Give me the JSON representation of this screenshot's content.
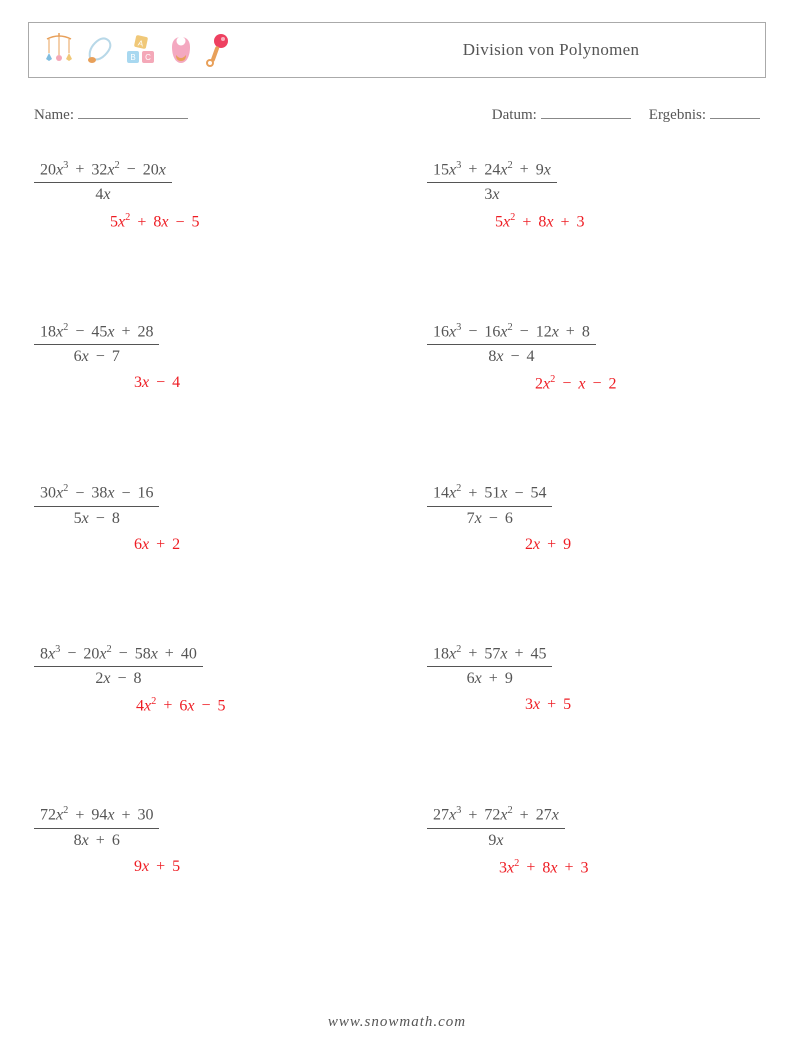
{
  "header": {
    "title": "Division von Polynomen",
    "icon_colors": {
      "mobile_frame": "#e8a05a",
      "mobile_accent": "#7fbde0",
      "pin_outline": "#b8d8e8",
      "pin_accent": "#e8a05a",
      "block_a": "#f4a8b8",
      "block_b": "#a8d8f0",
      "block_c": "#f0c878",
      "bib_body": "#f4a8c0",
      "bib_pocket": "#e8a05a",
      "rattle_handle": "#e8a05a",
      "rattle_ball": "#ee4060"
    }
  },
  "meta": {
    "name_label": "Name:",
    "date_label": "Datum:",
    "score_label": "Ergebnis:"
  },
  "styling": {
    "text_color": "#555555",
    "answer_color": "#ee1c23",
    "border_color": "#aaaaaa",
    "background_color": "#ffffff",
    "body_fontsize": 16,
    "title_fontsize": 17,
    "meta_fontsize": 15
  },
  "problems": {
    "columns": 2,
    "rows": 5,
    "items": [
      {
        "numerator": "20x³ + 32x² − 20x",
        "denominator": "4x",
        "answer": "5x² + 8x − 5",
        "answer_indent": 76
      },
      {
        "numerator": "15x³ + 24x² + 9x",
        "denominator": "3x",
        "answer": "5x² + 8x + 3",
        "answer_indent": 68
      },
      {
        "numerator": "18x² − 45x + 28",
        "denominator": "6x − 7",
        "answer": "3x − 4",
        "answer_indent": 100
      },
      {
        "numerator": "16x³ − 16x² − 12x + 8",
        "denominator": "8x − 4",
        "answer": "2x² − x − 2",
        "answer_indent": 108
      },
      {
        "numerator": "30x² − 38x − 16",
        "denominator": "5x − 8",
        "answer": "6x + 2",
        "answer_indent": 100
      },
      {
        "numerator": "14x² + 51x − 54",
        "denominator": "7x − 6",
        "answer": "2x + 9",
        "answer_indent": 98
      },
      {
        "numerator": "8x³ − 20x² − 58x + 40",
        "denominator": "2x − 8",
        "answer": "4x² + 6x − 5",
        "answer_indent": 102
      },
      {
        "numerator": "18x² + 57x + 45",
        "denominator": "6x + 9",
        "answer": "3x + 5",
        "answer_indent": 98
      },
      {
        "numerator": "72x² + 94x + 30",
        "denominator": "8x + 6",
        "answer": "9x + 5",
        "answer_indent": 100
      },
      {
        "numerator": "27x³ + 72x² + 27x",
        "denominator": "9x",
        "answer": "3x² + 8x + 3",
        "answer_indent": 72
      }
    ]
  },
  "footer": {
    "text": "www.snowmath.com"
  }
}
